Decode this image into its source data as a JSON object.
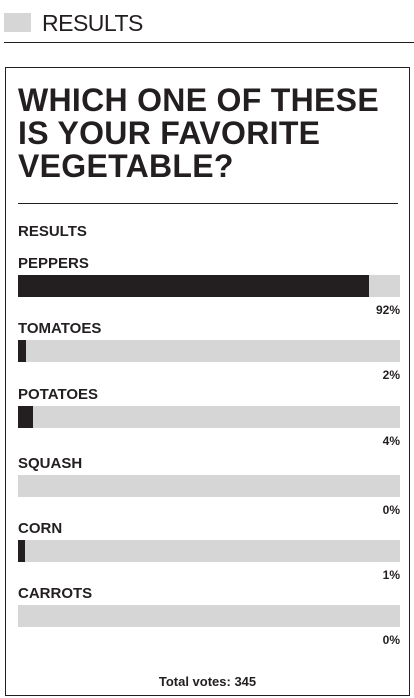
{
  "header": {
    "title": "RESULTS"
  },
  "poll": {
    "question": "WHICH ONE OF THESE IS YOUR FAVORITE VEGETABLE?",
    "results_label": "RESULTS",
    "options": [
      {
        "label": "PEPPERS",
        "percent_text": "92%",
        "fraction": 0.92
      },
      {
        "label": "TOMATOES",
        "percent_text": "2%",
        "fraction": 0.02
      },
      {
        "label": "POTATOES",
        "percent_text": "4%",
        "fraction": 0.04
      },
      {
        "label": "SQUASH",
        "percent_text": "0%",
        "fraction": 0.0
      },
      {
        "label": "CORN",
        "percent_text": "1%",
        "fraction": 0.01
      },
      {
        "label": "CARROTS",
        "percent_text": "0%",
        "fraction": 0.0
      }
    ],
    "total_votes": "Total votes: 345"
  },
  "colors": {
    "bar_fill": "#231f20",
    "bar_track": "#d6d6d6",
    "text": "#231f20"
  }
}
